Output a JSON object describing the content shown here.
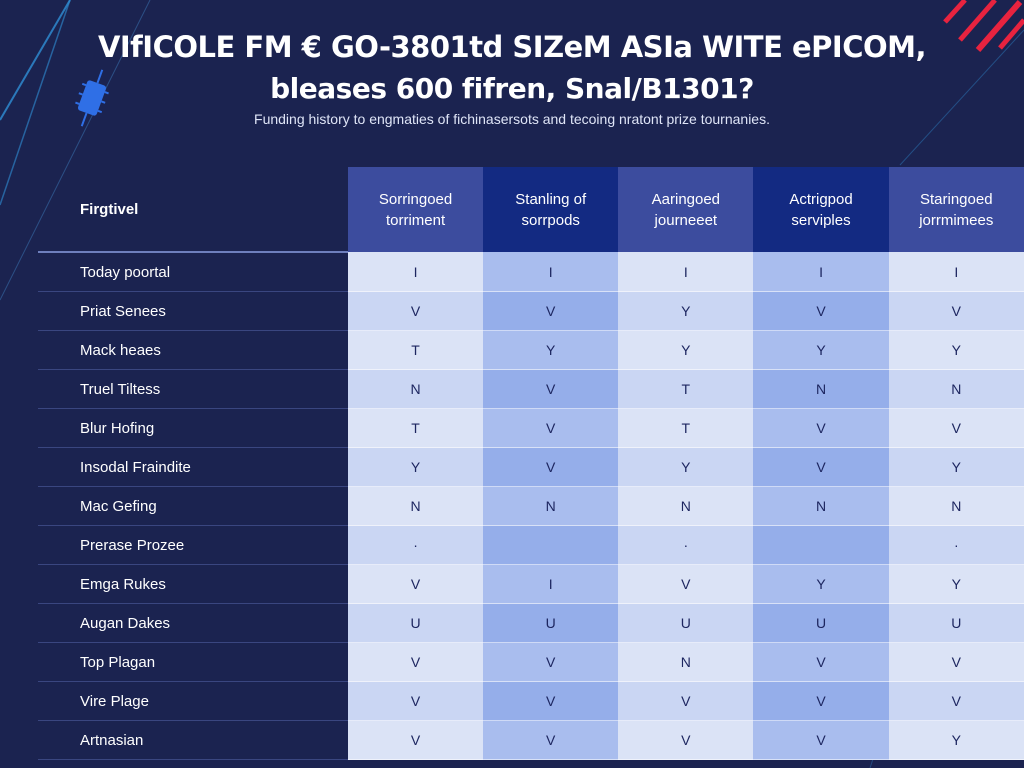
{
  "title": {
    "line1": "VIfICOLE FM € GO-3801td SIZeM ASIa WITE ePICOM,",
    "line2": "bleases 600 fifren, Snal/B1301?"
  },
  "subtitle": "Funding history to engmaties of fichinasersots and tecoing nratont prize tournanies.",
  "chart_data": {
    "type": "table",
    "corner_label": "Firgtivel",
    "columns": [
      [
        "Sorringoed",
        "torriment"
      ],
      [
        "Stanling of",
        "sorrpods"
      ],
      [
        "Aaringoed",
        "journeeet"
      ],
      [
        "Actrigpod",
        "serviples"
      ],
      [
        "Staringoed",
        "jorrmimees"
      ]
    ],
    "rows": [
      {
        "label": "Today poortal",
        "values": [
          "I",
          "I",
          "I",
          "I",
          "I"
        ]
      },
      {
        "label": "Priat Senees",
        "values": [
          "V",
          "V",
          "Y",
          "V",
          "V"
        ]
      },
      {
        "label": "Mack heaes",
        "values": [
          "T",
          "Y",
          "Y",
          "Y",
          "Y"
        ]
      },
      {
        "label": "Truel Tiltess",
        "values": [
          "N",
          "V",
          "T",
          "N",
          "N"
        ]
      },
      {
        "label": "Blur Hofing",
        "values": [
          "T",
          "V",
          "T",
          "V",
          "V"
        ]
      },
      {
        "label": "Insodal Fraindite",
        "values": [
          "Y",
          "V",
          "Y",
          "V",
          "Y"
        ]
      },
      {
        "label": "Mac Gefing",
        "values": [
          "N",
          "N",
          "N",
          "N",
          "N"
        ]
      },
      {
        "label": "Prerase Prozee",
        "values": [
          "·",
          "",
          "·",
          "",
          "·"
        ]
      },
      {
        "label": "Emga Rukes",
        "values": [
          "V",
          "I",
          "V",
          "Y",
          "Y"
        ]
      },
      {
        "label": "Augan Dakes",
        "values": [
          "U",
          "U",
          "U",
          "U",
          "U"
        ]
      },
      {
        "label": "Top Plagan",
        "values": [
          "V",
          "V",
          "N",
          "V",
          "V"
        ]
      },
      {
        "label": "Vire Plage",
        "values": [
          "V",
          "V",
          "V",
          "V",
          "V"
        ]
      },
      {
        "label": "Artnasian",
        "values": [
          "V",
          "V",
          "V",
          "V",
          "Y"
        ]
      }
    ]
  },
  "colors": {
    "background": "#1b2350",
    "header_fills": [
      "#3c4c9e",
      "#132a82",
      "#3c4c9e",
      "#132a82",
      "#3c4c9e"
    ],
    "cell_text": "#1d2660",
    "accent_red": "#e8233f"
  }
}
